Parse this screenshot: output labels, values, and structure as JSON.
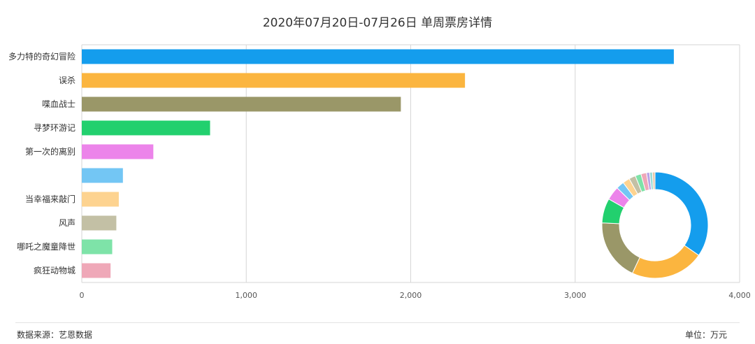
{
  "chart_data": [
    {
      "type": "bar",
      "orientation": "horizontal",
      "title": "2020年07月20日-07月26日 单周票房详情",
      "categories": [
        "多力特的奇幻冒险",
        "误杀",
        "喋血战士",
        "寻梦环游记",
        "第一次的离别",
        "",
        "当幸福来敲门",
        "风声",
        "哪吒之魔童降世",
        "疯狂动物城"
      ],
      "values": [
        3600,
        2330,
        1940,
        780,
        435,
        250,
        225,
        210,
        185,
        175
      ],
      "colors": [
        "#149ded",
        "#fbb53f",
        "#9a9768",
        "#22d06e",
        "#ec84ea",
        "#73c6f4",
        "#fdd390",
        "#c3c0a5",
        "#7ee3a8",
        "#efa8b8"
      ],
      "xlim": [
        0,
        4000
      ],
      "xticks": [
        "0",
        "1,000",
        "2,000",
        "3,000",
        "4,000"
      ],
      "grid": true,
      "legend": "none"
    },
    {
      "type": "pie",
      "style": "donut",
      "values": [
        3600,
        2330,
        1940,
        780,
        435,
        250,
        225,
        210,
        185,
        175,
        100,
        90,
        80
      ],
      "colors": [
        "#149ded",
        "#fbb53f",
        "#9a9768",
        "#22d06e",
        "#ec84ea",
        "#73c6f4",
        "#fdd390",
        "#c3c0a5",
        "#7ee3a8",
        "#efa8b8",
        "#b9a3e8",
        "#9adbd6",
        "#e8c7a8"
      ]
    }
  ],
  "footer": {
    "source": "数据来源：艺恩数据",
    "unit": "单位：万元"
  }
}
